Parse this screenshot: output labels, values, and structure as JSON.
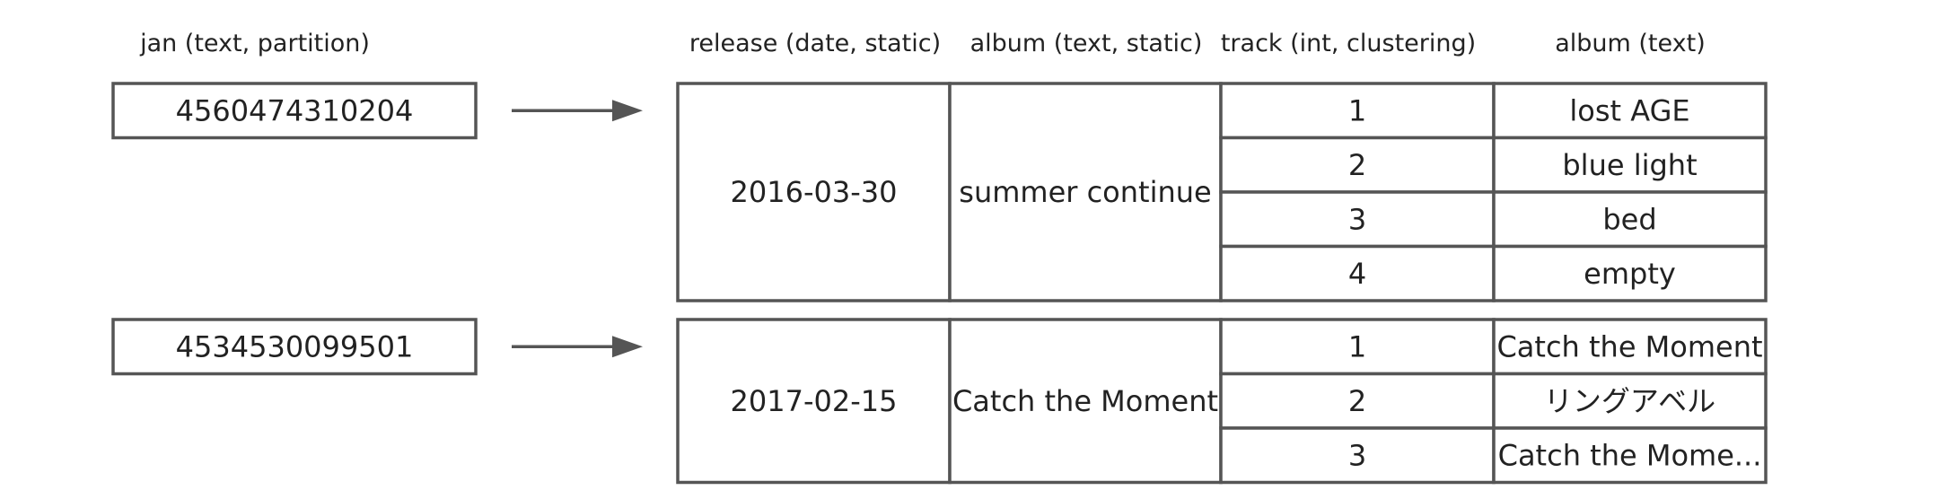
{
  "headers": {
    "jan": "jan (text, partition)",
    "release": "release (date, static)",
    "album_static": "album (text, static)",
    "track": "track (int, clustering)",
    "album": "album (text)"
  },
  "partitions": [
    {
      "jan": "4560474310204",
      "release": "2016-03-30",
      "album_static": "summer continue",
      "rows": [
        {
          "track": "1",
          "album": "lost AGE"
        },
        {
          "track": "2",
          "album": "blue light"
        },
        {
          "track": "3",
          "album": "bed"
        },
        {
          "track": "4",
          "album": "empty"
        }
      ]
    },
    {
      "jan": "4534530099501",
      "release": "2017-02-15",
      "album_static": "Catch the Moment",
      "rows": [
        {
          "track": "1",
          "album": "Catch the Moment"
        },
        {
          "track": "2",
          "album": "リングアベル"
        },
        {
          "track": "3",
          "album": "Catch the Mome..."
        }
      ]
    }
  ],
  "colors": {
    "stroke": "#555555",
    "text": "#222222",
    "background": "#ffffff"
  }
}
